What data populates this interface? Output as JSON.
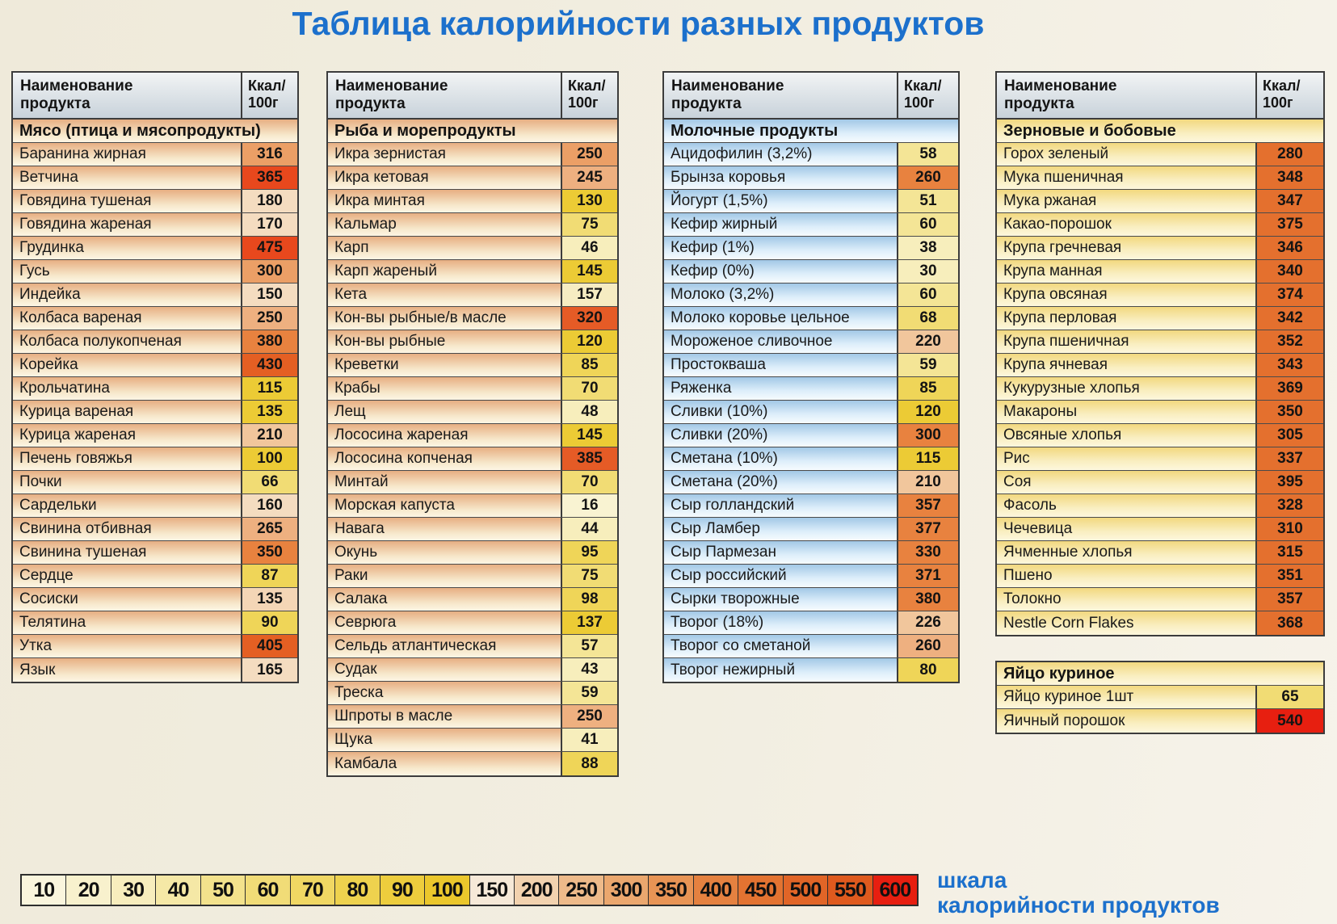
{
  "page": {
    "title": "Таблица калорийности разных продуктов",
    "header": {
      "name_line1": "Наименование",
      "name_line2": "продукта",
      "kcal_line1": "Ккал/",
      "kcal_line2": "100г"
    }
  },
  "tables": [
    {
      "id": "meat",
      "section": "Мясо (птица и мясопродукты)",
      "rows": [
        {
          "name": "Баранина жирная",
          "kcal": "316",
          "color": "#eb9f66"
        },
        {
          "name": "Ветчина",
          "kcal": "365",
          "color": "#e8481d"
        },
        {
          "name": "Говядина тушеная",
          "kcal": "180",
          "color": "#f4dcc0"
        },
        {
          "name": "Говядина жареная",
          "kcal": "170",
          "color": "#f4dcc0"
        },
        {
          "name": "Грудинка",
          "kcal": "475",
          "color": "#e8481d"
        },
        {
          "name": "Гусь",
          "kcal": "300",
          "color": "#eb9f66"
        },
        {
          "name": "Индейка",
          "kcal": "150",
          "color": "#f4dcc0"
        },
        {
          "name": "Колбаса вареная",
          "kcal": "250",
          "color": "#eeb080"
        },
        {
          "name": "Колбаса полукопченая",
          "kcal": "380",
          "color": "#e8823f"
        },
        {
          "name": "Корейка",
          "kcal": "430",
          "color": "#e45f23"
        },
        {
          "name": "Крольчатина",
          "kcal": "115",
          "color": "#eccb35"
        },
        {
          "name": "Курица вареная",
          "kcal": "135",
          "color": "#eccb35"
        },
        {
          "name": "Курица жареная",
          "kcal": "210",
          "color": "#f1c69c"
        },
        {
          "name": "Печень говяжья",
          "kcal": "100",
          "color": "#eccb35"
        },
        {
          "name": "Почки",
          "kcal": "66",
          "color": "#f1dc74"
        },
        {
          "name": "Сардельки",
          "kcal": "160",
          "color": "#f4dcc0"
        },
        {
          "name": "Свинина отбивная",
          "kcal": "265",
          "color": "#eeb080"
        },
        {
          "name": "Свинина тушеная",
          "kcal": "350",
          "color": "#e8823f"
        },
        {
          "name": "Сердце",
          "kcal": "87",
          "color": "#efd558"
        },
        {
          "name": "Сосиски",
          "kcal": "135",
          "color": "#f4d6b6"
        },
        {
          "name": "Телятина",
          "kcal": "90",
          "color": "#efd558"
        },
        {
          "name": "Утка",
          "kcal": "405",
          "color": "#e45f23"
        },
        {
          "name": "Язык",
          "kcal": "165",
          "color": "#f4dcc0"
        }
      ]
    },
    {
      "id": "fish",
      "section": "Рыба и морепродукты",
      "rows": [
        {
          "name": "Икра зернистая",
          "kcal": "250",
          "color": "#eb9f66"
        },
        {
          "name": "Икра кетовая",
          "kcal": "245",
          "color": "#eeb080"
        },
        {
          "name": "Икра минтая",
          "kcal": "130",
          "color": "#eccb35"
        },
        {
          "name": "Кальмар",
          "kcal": "75",
          "color": "#f1dc74"
        },
        {
          "name": "Карп",
          "kcal": "46",
          "color": "#f7eebc"
        },
        {
          "name": "Карп жареный",
          "kcal": "145",
          "color": "#eccb35"
        },
        {
          "name": "Кета",
          "kcal": "157",
          "color": "#f6ecc2"
        },
        {
          "name": "Кон-вы рыбные/в масле",
          "kcal": "320",
          "color": "#e55b26"
        },
        {
          "name": "Кон-вы рыбные",
          "kcal": "120",
          "color": "#eccb35"
        },
        {
          "name": "Креветки",
          "kcal": "85",
          "color": "#efd558"
        },
        {
          "name": "Крабы",
          "kcal": "70",
          "color": "#f1dc74"
        },
        {
          "name": "Лещ",
          "kcal": "48",
          "color": "#f7eebc"
        },
        {
          "name": "Лососина жареная",
          "kcal": "145",
          "color": "#eccb35"
        },
        {
          "name": "Лососина копченая",
          "kcal": "385",
          "color": "#e55b26"
        },
        {
          "name": "Минтай",
          "kcal": "70",
          "color": "#f1dc74"
        },
        {
          "name": "Морская капуста",
          "kcal": "16",
          "color": "#f9f3d2"
        },
        {
          "name": "Навага",
          "kcal": "44",
          "color": "#f7eebc"
        },
        {
          "name": "Окунь",
          "kcal": "95",
          "color": "#efd558"
        },
        {
          "name": "Раки",
          "kcal": "75",
          "color": "#f1dc74"
        },
        {
          "name": "Салака",
          "kcal": "98",
          "color": "#efd558"
        },
        {
          "name": "Севрюга",
          "kcal": "137",
          "color": "#eccb35"
        },
        {
          "name": "Сельдь атлантическая",
          "kcal": "57",
          "color": "#f4e596"
        },
        {
          "name": "Судак",
          "kcal": "43",
          "color": "#f7eebc"
        },
        {
          "name": "Треска",
          "kcal": "59",
          "color": "#f4e596"
        },
        {
          "name": "Шпроты в масле",
          "kcal": "250",
          "color": "#eeb080"
        },
        {
          "name": "Щука",
          "kcal": "41",
          "color": "#f7eebc"
        },
        {
          "name": "Камбала",
          "kcal": "88",
          "color": "#efd558"
        }
      ]
    },
    {
      "id": "dairy",
      "section": "Молочные продукты",
      "rows": [
        {
          "name": "Ацидофилин (3,2%)",
          "kcal": "58",
          "color": "#f4e596"
        },
        {
          "name": "Брынза коровья",
          "kcal": "260",
          "color": "#e8823f"
        },
        {
          "name": "Йогурт (1,5%)",
          "kcal": "51",
          "color": "#f4e596"
        },
        {
          "name": "Кефир жирный",
          "kcal": "60",
          "color": "#f4e596"
        },
        {
          "name": "Кефир (1%)",
          "kcal": "38",
          "color": "#f7eebc"
        },
        {
          "name": "Кефир (0%)",
          "kcal": "30",
          "color": "#f7eebc"
        },
        {
          "name": "Молоко (3,2%)",
          "kcal": "60",
          "color": "#f4e596"
        },
        {
          "name": "Молоко коровье цельное",
          "kcal": "68",
          "color": "#f1dc74"
        },
        {
          "name": "Мороженое сливочное",
          "kcal": "220",
          "color": "#f1c69c"
        },
        {
          "name": "Простокваша",
          "kcal": "59",
          "color": "#f4e596"
        },
        {
          "name": "Ряженка",
          "kcal": "85",
          "color": "#efd558"
        },
        {
          "name": "Сливки (10%)",
          "kcal": "120",
          "color": "#eccb35"
        },
        {
          "name": "Сливки (20%)",
          "kcal": "300",
          "color": "#e8823f"
        },
        {
          "name": "Сметана (10%)",
          "kcal": "115",
          "color": "#eccb35"
        },
        {
          "name": "Сметана (20%)",
          "kcal": "210",
          "color": "#f1c69c"
        },
        {
          "name": "Сыр голландский",
          "kcal": "357",
          "color": "#e8823f"
        },
        {
          "name": "Сыр Ламбер",
          "kcal": "377",
          "color": "#e8823f"
        },
        {
          "name": "Сыр Пармезан",
          "kcal": "330",
          "color": "#e8823f"
        },
        {
          "name": "Сыр российский",
          "kcal": "371",
          "color": "#e8823f"
        },
        {
          "name": "Сырки творожные",
          "kcal": "380",
          "color": "#e8823f"
        },
        {
          "name": "Творог (18%)",
          "kcal": "226",
          "color": "#f1c69c"
        },
        {
          "name": "Творог со сметаной",
          "kcal": "260",
          "color": "#eeb080"
        },
        {
          "name": "Творог нежирный",
          "kcal": "80",
          "color": "#efd558"
        }
      ]
    },
    {
      "id": "grains",
      "section": "Зерновые и бобовые",
      "rows": [
        {
          "name": "Горох зеленый",
          "kcal": "280",
          "color": "#e4702e"
        },
        {
          "name": "Мука пшеничная",
          "kcal": "348",
          "color": "#e4702e"
        },
        {
          "name": "Мука ржаная",
          "kcal": "347",
          "color": "#e4702e"
        },
        {
          "name": "Какао-порошок",
          "kcal": "375",
          "color": "#e4702e"
        },
        {
          "name": "Крупа гречневая",
          "kcal": "346",
          "color": "#e4702e"
        },
        {
          "name": "Крупа манная",
          "kcal": "340",
          "color": "#e4702e"
        },
        {
          "name": "Крупа овсяная",
          "kcal": "374",
          "color": "#e4702e"
        },
        {
          "name": "Крупа перловая",
          "kcal": "342",
          "color": "#e4702e"
        },
        {
          "name": "Крупа пшеничная",
          "kcal": "352",
          "color": "#e4702e"
        },
        {
          "name": "Крупа ячневая",
          "kcal": "343",
          "color": "#e4702e"
        },
        {
          "name": "Кукурузные хлопья",
          "kcal": "369",
          "color": "#e4702e"
        },
        {
          "name": "Макароны",
          "kcal": "350",
          "color": "#e4702e"
        },
        {
          "name": "Овсяные хлопья",
          "kcal": "305",
          "color": "#e4702e"
        },
        {
          "name": "Рис",
          "kcal": "337",
          "color": "#e4702e"
        },
        {
          "name": "Соя",
          "kcal": "395",
          "color": "#e4702e"
        },
        {
          "name": "Фасоль",
          "kcal": "328",
          "color": "#e4702e"
        },
        {
          "name": "Чечевица",
          "kcal": "310",
          "color": "#e4702e"
        },
        {
          "name": "Ячменные хлопья",
          "kcal": "315",
          "color": "#e4702e"
        },
        {
          "name": "Пшено",
          "kcal": "351",
          "color": "#e4702e"
        },
        {
          "name": "Толокно",
          "kcal": "357",
          "color": "#e4702e"
        },
        {
          "name": "Nestle Corn Flakes",
          "kcal": "368",
          "color": "#e4702e"
        }
      ]
    },
    {
      "id": "egg",
      "section": "Яйцо куриное",
      "rows": [
        {
          "name": "Яйцо куриное 1шт",
          "kcal": "65",
          "color": "#f1dc74"
        },
        {
          "name": "Яичный порошок",
          "kcal": "540",
          "color": "#e71f10"
        }
      ]
    }
  ],
  "scale": {
    "label_line1": "шкала",
    "label_line2": "калорийности продуктов",
    "cells": [
      {
        "value": "10",
        "color": "#faf5dd"
      },
      {
        "value": "20",
        "color": "#f8f1cd"
      },
      {
        "value": "30",
        "color": "#f7edbd"
      },
      {
        "value": "40",
        "color": "#f5e8a6"
      },
      {
        "value": "50",
        "color": "#f3e28c"
      },
      {
        "value": "60",
        "color": "#f1dc77"
      },
      {
        "value": "70",
        "color": "#f0d763"
      },
      {
        "value": "80",
        "color": "#eed24e"
      },
      {
        "value": "90",
        "color": "#edcd3d"
      },
      {
        "value": "100",
        "color": "#ebc72c"
      },
      {
        "value": "150",
        "color": "#f6e9d8"
      },
      {
        "value": "200",
        "color": "#f2d2af"
      },
      {
        "value": "250",
        "color": "#eeba8a"
      },
      {
        "value": "300",
        "color": "#eba76e"
      },
      {
        "value": "350",
        "color": "#e89455"
      },
      {
        "value": "400",
        "color": "#e58140"
      },
      {
        "value": "450",
        "color": "#e37331"
      },
      {
        "value": "500",
        "color": "#e16527"
      },
      {
        "value": "550",
        "color": "#df5a1e"
      },
      {
        "value": "600",
        "color": "#e71f10"
      }
    ]
  },
  "colors": {
    "accent_blue": "#1c70cc",
    "grain_value_orange": "#e4702e",
    "hot_red": "#e8481d"
  }
}
